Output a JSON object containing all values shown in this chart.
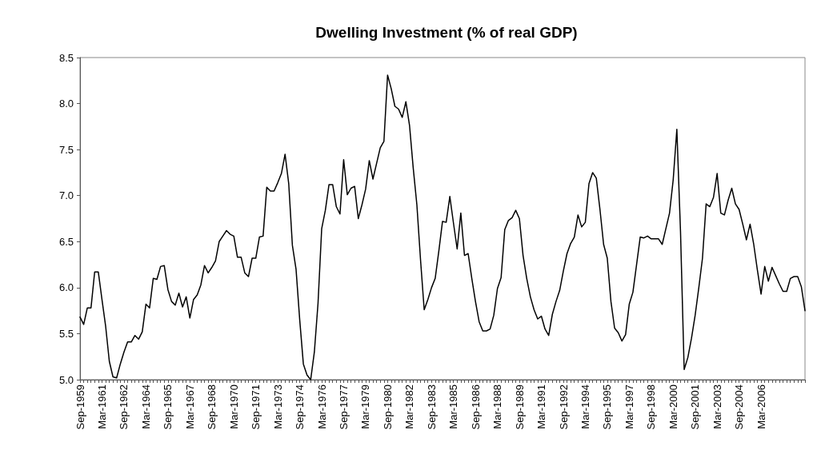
{
  "chart_data": {
    "type": "line",
    "title": "Dwelling Investment (% of real GDP)",
    "categories": [
      "Sep-1959",
      null,
      null,
      null,
      null,
      null,
      "Mar-1961",
      null,
      null,
      null,
      null,
      null,
      "Sep-1962",
      null,
      null,
      null,
      null,
      null,
      "Mar-1964",
      null,
      null,
      null,
      null,
      null,
      "Sep-1965",
      null,
      null,
      null,
      null,
      null,
      "Mar-1967",
      null,
      null,
      null,
      null,
      null,
      "Sep-1968",
      null,
      null,
      null,
      null,
      null,
      "Mar-1970",
      null,
      null,
      null,
      null,
      null,
      "Sep-1971",
      null,
      null,
      null,
      null,
      null,
      "Mar-1973",
      null,
      null,
      null,
      null,
      null,
      "Sep-1974",
      null,
      null,
      null,
      null,
      null,
      "Mar-1976",
      null,
      null,
      null,
      null,
      null,
      "Sep-1977",
      null,
      null,
      null,
      null,
      null,
      "Mar-1979",
      null,
      null,
      null,
      null,
      null,
      "Sep-1980",
      null,
      null,
      null,
      null,
      null,
      "Mar-1982",
      null,
      null,
      null,
      null,
      null,
      "Sep-1983",
      null,
      null,
      null,
      null,
      null,
      "Mar-1985",
      null,
      null,
      null,
      null,
      null,
      "Sep-1986",
      null,
      null,
      null,
      null,
      null,
      "Mar-1988",
      null,
      null,
      null,
      null,
      null,
      "Sep-1989",
      null,
      null,
      null,
      null,
      null,
      "Mar-1991",
      null,
      null,
      null,
      null,
      null,
      "Sep-1992",
      null,
      null,
      null,
      null,
      null,
      "Mar-1994",
      null,
      null,
      null,
      null,
      null,
      "Sep-1995",
      null,
      null,
      null,
      null,
      null,
      "Mar-1997",
      null,
      null,
      null,
      null,
      null,
      "Sep-1998",
      null,
      null,
      null,
      null,
      null,
      "Mar-2000",
      null,
      null,
      null,
      null,
      null,
      "Sep-2001",
      null,
      null,
      null,
      null,
      null,
      "Mar-2003",
      null,
      null,
      null,
      null,
      null,
      "Sep-2004",
      null,
      null,
      null,
      null,
      null,
      "Mar-2006",
      null,
      null,
      null,
      null,
      null,
      null,
      null,
      null,
      null,
      null,
      null,
      null
    ],
    "series": [
      {
        "color": "#000000",
        "values": [
          5.68,
          5.6,
          5.78,
          5.78,
          6.17,
          6.17,
          5.87,
          5.58,
          5.2,
          5.03,
          5.02,
          5.17,
          5.3,
          5.41,
          5.41,
          5.48,
          5.44,
          5.52,
          5.82,
          5.78,
          6.1,
          6.09,
          6.23,
          6.24,
          5.98,
          5.85,
          5.81,
          5.94,
          5.79,
          5.9,
          5.67,
          5.87,
          5.92,
          6.03,
          6.24,
          6.16,
          6.22,
          6.29,
          6.5,
          6.56,
          6.62,
          6.58,
          6.56,
          6.33,
          6.33,
          6.16,
          6.12,
          6.32,
          6.32,
          6.55,
          6.56,
          7.09,
          7.05,
          7.05,
          7.14,
          7.24,
          7.45,
          7.13,
          6.46,
          6.2,
          5.65,
          5.17,
          5.05,
          5.0,
          5.3,
          5.83,
          6.64,
          6.84,
          7.12,
          7.12,
          6.88,
          6.8,
          7.39,
          7.01,
          7.08,
          7.1,
          6.75,
          6.9,
          7.07,
          7.38,
          7.18,
          7.35,
          7.52,
          7.59,
          8.31,
          8.16,
          7.97,
          7.94,
          7.85,
          8.02,
          7.76,
          7.3,
          6.9,
          6.3,
          5.76,
          5.87,
          6.0,
          6.1,
          6.4,
          6.72,
          6.71,
          6.99,
          6.7,
          6.42,
          6.81,
          6.35,
          6.37,
          6.1,
          5.85,
          5.63,
          5.53,
          5.53,
          5.55,
          5.7,
          5.99,
          6.11,
          6.63,
          6.73,
          6.76,
          6.84,
          6.75,
          6.35,
          6.1,
          5.9,
          5.76,
          5.66,
          5.69,
          5.55,
          5.48,
          5.71,
          5.85,
          5.97,
          6.18,
          6.37,
          6.48,
          6.55,
          6.79,
          6.66,
          6.71,
          7.13,
          7.25,
          7.19,
          6.85,
          6.47,
          6.32,
          5.85,
          5.56,
          5.51,
          5.42,
          5.49,
          5.82,
          5.95,
          6.25,
          6.55,
          6.54,
          6.56,
          6.53,
          6.53,
          6.53,
          6.47,
          6.64,
          6.81,
          7.17,
          7.72,
          6.61,
          5.11,
          5.24,
          5.45,
          5.7,
          6.0,
          6.32,
          6.91,
          6.88,
          6.98,
          7.24,
          6.81,
          6.79,
          6.95,
          7.08,
          6.91,
          6.85,
          6.69,
          6.52,
          6.69,
          6.47,
          6.19,
          5.93,
          6.23,
          6.07,
          6.22,
          6.13,
          6.04,
          5.96,
          5.96,
          6.1,
          6.12,
          6.12,
          6.01,
          5.75
        ]
      }
    ],
    "ylim": [
      5.0,
      8.5
    ],
    "yticks": [
      {
        "value": 5.0,
        "label": "5.0"
      },
      {
        "value": 5.5,
        "label": "5.5"
      },
      {
        "value": 6.0,
        "label": "6.0"
      },
      {
        "value": 6.5,
        "label": "6.5"
      },
      {
        "value": 7.0,
        "label": "7.0"
      },
      {
        "value": 7.5,
        "label": "7.5"
      },
      {
        "value": 8.0,
        "label": "8.0"
      },
      {
        "value": 8.5,
        "label": "8.5"
      }
    ],
    "grid": false,
    "marker": "none",
    "line_style": "solid"
  }
}
